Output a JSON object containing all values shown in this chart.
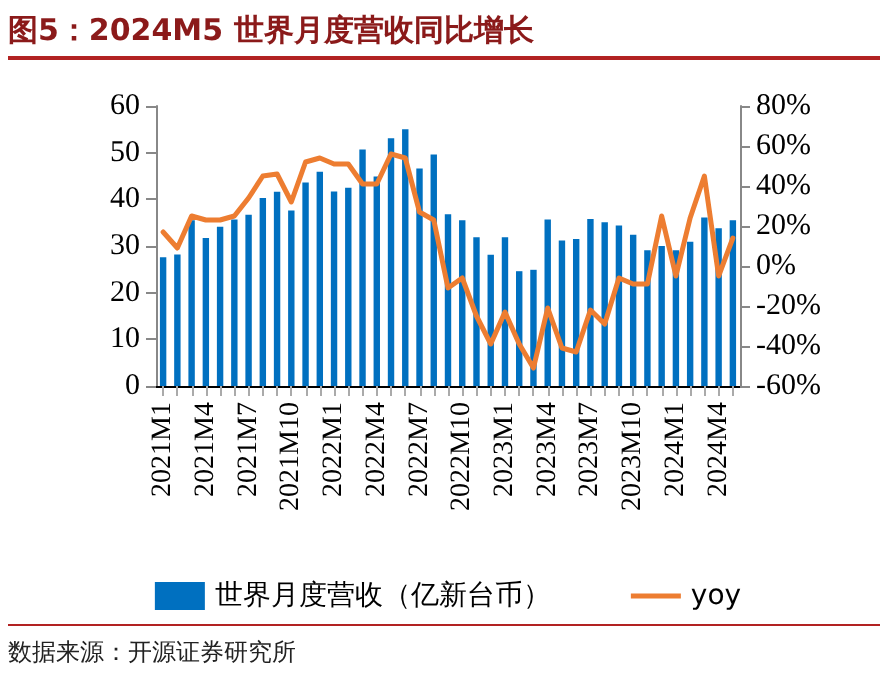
{
  "chart_data": {
    "type": "bar",
    "title": "图5：2024M5 世界月度营收同比增长",
    "categories": [
      "2021M1",
      null,
      null,
      "2021M4",
      null,
      null,
      "2021M7",
      null,
      null,
      "2021M10",
      null,
      null,
      "2022M1",
      null,
      null,
      "2022M4",
      null,
      null,
      "2022M7",
      null,
      null,
      "2022M10",
      null,
      null,
      "2023M1",
      null,
      null,
      "2023M4",
      null,
      null,
      "2023M7",
      null,
      null,
      "2023M10",
      null,
      null,
      "2024M1",
      null,
      null,
      "2024M4",
      null
    ],
    "series": [
      {
        "name": "世界月度营收（亿新台币）",
        "color": "#0070c0",
        "values": [
          27.6,
          28.2,
          35.5,
          31.7,
          34.1,
          35.7,
          36.7,
          40.3,
          41.6,
          37.6,
          43.6,
          45.9,
          41.7,
          42.5,
          50.7,
          44.9,
          53.1,
          55.0,
          46.6,
          49.6,
          36.8,
          35.5,
          31.9,
          28.1,
          31.9,
          24.6,
          24.9,
          35.7,
          31.2,
          31.5,
          35.8,
          35.1,
          34.4,
          32.4,
          29.1,
          30.0,
          29.1,
          30.9,
          36.1,
          33.8,
          35.5
        ]
      },
      {
        "name": "yoy",
        "type": "line",
        "axis": "y2",
        "color": "#ed7d31",
        "values": [
          17,
          9,
          25,
          23,
          23,
          25,
          34,
          45,
          46,
          32,
          52,
          54,
          51,
          51,
          41,
          41,
          56,
          54,
          27,
          23,
          -11,
          -6,
          -25,
          -39,
          -23,
          -39,
          -51,
          -21,
          -41,
          -43,
          -22,
          -29,
          -6,
          -9,
          -9,
          25,
          -5,
          24,
          45,
          -5,
          14
        ]
      }
    ],
    "ylim": [
      0,
      60
    ],
    "yticks": [
      0,
      10,
      20,
      30,
      40,
      50,
      60
    ],
    "y2lim": [
      -60,
      80
    ],
    "y2ticks": [
      {
        "value": -60,
        "label": "-60%"
      },
      {
        "value": -40,
        "label": "-40%"
      },
      {
        "value": -20,
        "label": "-20%"
      },
      {
        "value": 0,
        "label": "0%"
      },
      {
        "value": 20,
        "label": "20%"
      },
      {
        "value": 40,
        "label": "40%"
      },
      {
        "value": 60,
        "label": "60%"
      },
      {
        "value": 80,
        "label": "80%"
      }
    ],
    "legend": "bottom",
    "grid": false,
    "marker": "none",
    "line_style": "solid",
    "annotations": [
      "数据来源：开源证券研究所"
    ]
  }
}
